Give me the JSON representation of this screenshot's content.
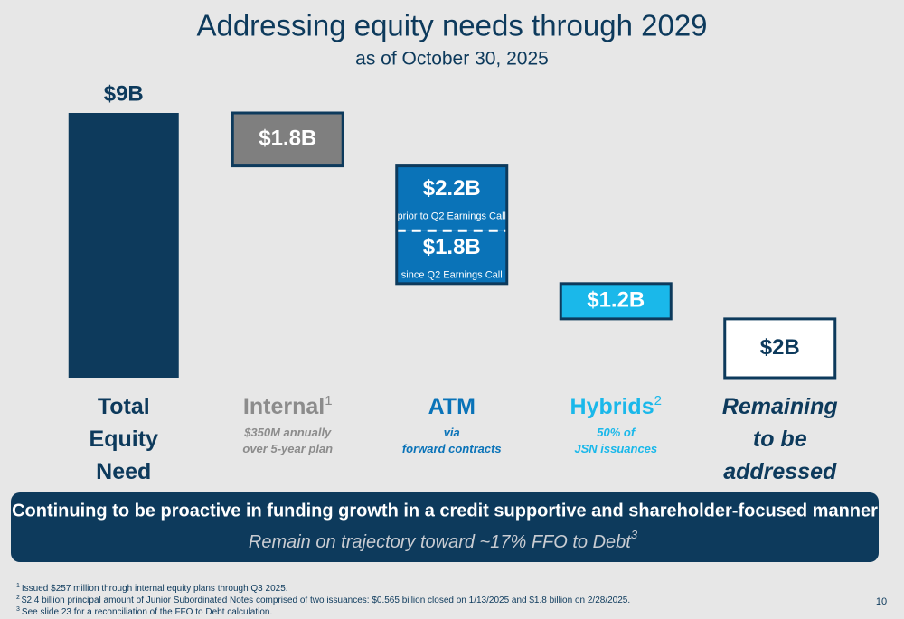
{
  "chart_data": {
    "type": "waterfall",
    "title": "Addressing equity needs through 2029",
    "subtitle": "as of October 30, 2025",
    "ylim": [
      0,
      9
    ],
    "steps": [
      {
        "category": "Total Equity Need",
        "values": [
          9
        ],
        "value_labels": [
          "$9B"
        ],
        "color": "#0d3a5c",
        "label_color": "#0d3a5c"
      },
      {
        "category": "Internal",
        "footnote": "1",
        "note": [
          "$350M annually",
          "over 5-year plan"
        ],
        "values": [
          1.8
        ],
        "value_labels": [
          "$1.8B"
        ],
        "color": "#7f7f7f",
        "label_color": "#8c8c8c"
      },
      {
        "category": "ATM",
        "note": [
          "via",
          "forward contracts"
        ],
        "values": [
          2.2,
          1.8
        ],
        "value_labels": [
          "$2.2B",
          "$1.8B"
        ],
        "captions": [
          "prior to Q2 Earnings Call",
          "since Q2 Earnings Call"
        ],
        "color": "#0a73b8",
        "label_color": "#0a73b8"
      },
      {
        "category": "Hybrids",
        "footnote": "2",
        "note": [
          "50% of",
          "JSN issuances"
        ],
        "values": [
          1.2
        ],
        "value_labels": [
          "$1.2B"
        ],
        "color": "#1ab8ea",
        "label_color": "#1ab8ea"
      },
      {
        "category": "Remaining to be addressed",
        "values": [
          2
        ],
        "value_labels": [
          "$2B"
        ],
        "color": "#ffffff",
        "label_color": "#0d3a5c"
      }
    ],
    "banner": {
      "headline": "Continuing to be proactive in funding growth in a credit supportive and shareholder-focused manner",
      "subline": "Remain on trajectory toward ~17% FFO to Debt",
      "footnote": "3"
    },
    "footnotes": [
      {
        "marker": "1",
        "text": "Issued $257 million through internal equity plans through Q3 2025."
      },
      {
        "marker": "2",
        "text": "$2.4 billion principal amount of Junior Subordinated Notes comprised of two issuances: $0.565 billion closed on 1/13/2025 and $1.8 billion on 2/28/2025."
      },
      {
        "marker": "3",
        "text": "See slide 23 for a reconciliation of the FFO to Debt calculation."
      }
    ],
    "page_number": "10"
  }
}
